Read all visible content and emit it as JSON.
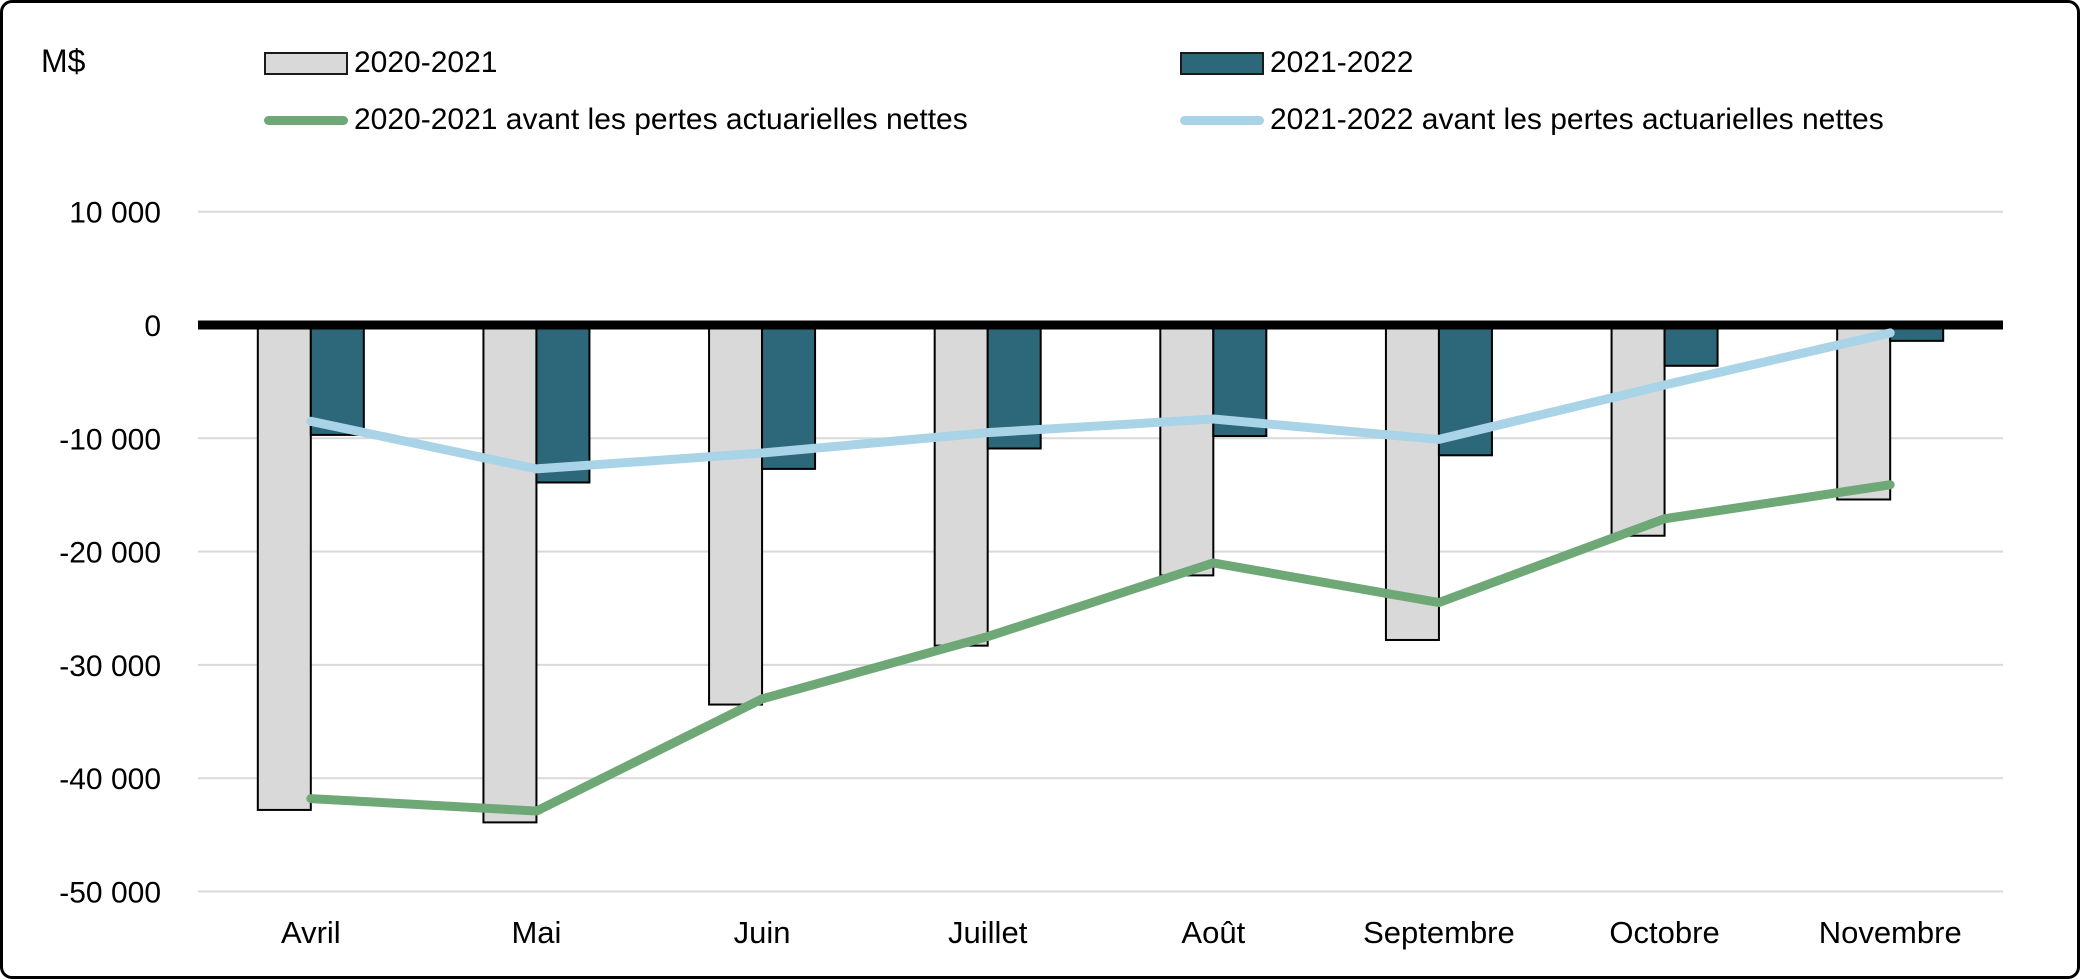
{
  "frame": {
    "background": "#FFFFFF",
    "border_color": "#000000"
  },
  "chart_data": {
    "type": "bar",
    "subtype": "clustered-bars-with-overlaid-lines",
    "title": "",
    "unit_label": "M$",
    "xlabel": "",
    "ylabel": "M$",
    "categories": [
      "Avril",
      "Mai",
      "Juin",
      "Juillet",
      "Août",
      "Septembre",
      "Octobre",
      "Novembre"
    ],
    "bar_series": [
      {
        "name": "2020-2021",
        "fill": "#D9D9D9",
        "stroke": "#000000",
        "values": [
          -42800,
          -43900,
          -33500,
          -28300,
          -22100,
          -27800,
          -18600,
          -15400
        ]
      },
      {
        "name": "2021-2022",
        "fill": "#2C6879",
        "stroke": "#000000",
        "values": [
          -9700,
          -13900,
          -12700,
          -10900,
          -9800,
          -11500,
          -3600,
          -1400
        ]
      }
    ],
    "line_series": [
      {
        "name": "2020-2021 avant les pertes actuarielles nettes",
        "color": "#6FA877",
        "values": [
          -41800,
          -42900,
          -33000,
          -27500,
          -21000,
          -24500,
          -17100,
          -14100
        ]
      },
      {
        "name": "2021-2022 avant les pertes actuarielles nettes",
        "color": "#A9D4E8",
        "values": [
          -8500,
          -12700,
          -11300,
          -9500,
          -8300,
          -10100,
          -5300,
          -700
        ]
      }
    ],
    "y_axis": {
      "min": -50000,
      "max": 10000,
      "step": 10000,
      "ticks": [
        {
          "value": 10000,
          "label": "10 000"
        },
        {
          "value": 0,
          "label": "0"
        },
        {
          "value": -10000,
          "label": "-10 000"
        },
        {
          "value": -20000,
          "label": "-20 000"
        },
        {
          "value": -30000,
          "label": "-30 000"
        },
        {
          "value": -40000,
          "label": "-40 000"
        },
        {
          "value": -50000,
          "label": "-50 000"
        }
      ]
    },
    "grid": true,
    "gridline_color": "#D9D9D9",
    "zero_line_color": "#000000",
    "legend_position": "top"
  }
}
